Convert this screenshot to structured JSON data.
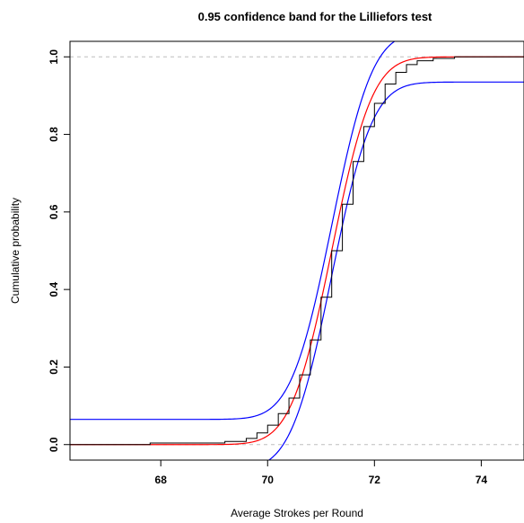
{
  "chart_data": {
    "type": "line",
    "title": "0.95 confidence band for the Lilliefors test",
    "xlabel": "Average Strokes per Round",
    "ylabel": "Cumulative probability",
    "xlim": [
      66.3,
      74.8
    ],
    "ylim": [
      -0.04,
      1.04
    ],
    "x_ticks": [
      "68",
      "70",
      "72",
      "74"
    ],
    "y_ticks": [
      "0.0",
      "0.2",
      "0.4",
      "0.6",
      "0.8",
      "1.0"
    ],
    "reference_lines_y": [
      0,
      1
    ],
    "grid": false,
    "legend": "none",
    "normal_fit": {
      "mean": 71.2,
      "sd": 0.6,
      "color": "#ff0000"
    },
    "band_half_width": 0.065,
    "band_color": "#0000ff",
    "ecdf_color": "#000000",
    "ecdf_points": [
      [
        66.3,
        0.0
      ],
      [
        67.8,
        0.004
      ],
      [
        69.2,
        0.008
      ],
      [
        69.6,
        0.016
      ],
      [
        69.8,
        0.03
      ],
      [
        70.0,
        0.05
      ],
      [
        70.2,
        0.08
      ],
      [
        70.4,
        0.12
      ],
      [
        70.6,
        0.18
      ],
      [
        70.8,
        0.27
      ],
      [
        71.0,
        0.38
      ],
      [
        71.2,
        0.5
      ],
      [
        71.4,
        0.62
      ],
      [
        71.6,
        0.73
      ],
      [
        71.8,
        0.82
      ],
      [
        72.0,
        0.88
      ],
      [
        72.2,
        0.93
      ],
      [
        72.4,
        0.96
      ],
      [
        72.6,
        0.98
      ],
      [
        72.8,
        0.99
      ],
      [
        73.1,
        0.996
      ],
      [
        73.5,
        1.0
      ],
      [
        74.8,
        1.0
      ]
    ]
  }
}
